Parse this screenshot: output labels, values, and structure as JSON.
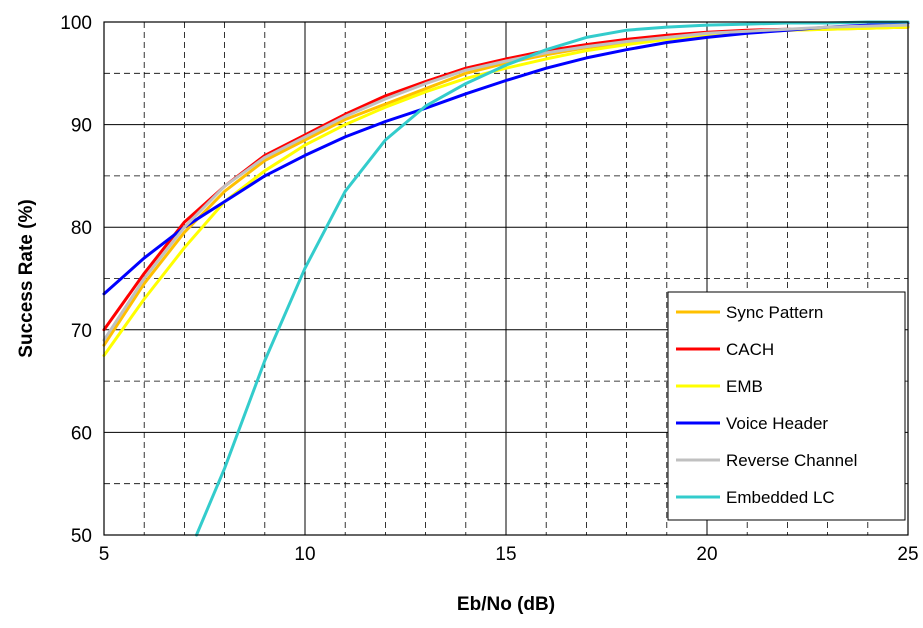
{
  "chart_data": {
    "type": "line",
    "xlabel": "Eb/No (dB)",
    "ylabel": "Success Rate (%)",
    "xlim": [
      5,
      25
    ],
    "ylim": [
      50,
      100
    ],
    "x_ticks": [
      5,
      10,
      15,
      20,
      25
    ],
    "y_ticks": [
      50,
      60,
      70,
      80,
      90,
      100
    ],
    "grid": "major solid, minor dashed",
    "legend_position": "bottom-right",
    "series": [
      {
        "name": "Sync Pattern",
        "color": "#FFC000",
        "x": [
          5,
          6,
          7,
          8,
          9,
          10,
          11,
          12,
          13,
          14,
          15,
          16,
          17,
          18,
          19,
          20,
          21,
          22,
          23,
          24,
          25
        ],
        "y": [
          68.5,
          74.5,
          79.5,
          83.5,
          86.5,
          88.5,
          90.5,
          92.0,
          93.5,
          95.0,
          96.0,
          96.8,
          97.5,
          98.0,
          98.5,
          98.8,
          99.0,
          99.2,
          99.3,
          99.4,
          99.5
        ]
      },
      {
        "name": "CACH",
        "color": "#FF0000",
        "x": [
          5,
          6,
          7,
          8,
          9,
          10,
          11,
          12,
          13,
          14,
          15,
          16,
          17,
          18,
          19,
          20,
          21,
          22,
          23,
          24,
          25
        ],
        "y": [
          70.0,
          75.5,
          80.5,
          84.0,
          87.0,
          89.0,
          91.0,
          92.8,
          94.2,
          95.5,
          96.4,
          97.2,
          97.8,
          98.3,
          98.7,
          99.0,
          99.2,
          99.3,
          99.4,
          99.5,
          99.5
        ]
      },
      {
        "name": "EMB",
        "color": "#FFFF00",
        "x": [
          5,
          6,
          7,
          8,
          9,
          10,
          11,
          12,
          13,
          14,
          15,
          16,
          17,
          18,
          19,
          20,
          21,
          22,
          23,
          24,
          25
        ],
        "y": [
          67.5,
          73.0,
          78.0,
          82.5,
          85.5,
          88.0,
          90.0,
          91.7,
          93.2,
          94.5,
          95.5,
          96.4,
          97.2,
          97.8,
          98.3,
          98.7,
          99.0,
          99.2,
          99.3,
          99.4,
          99.5
        ]
      },
      {
        "name": "Voice Header",
        "color": "#0000FF",
        "x": [
          5,
          6,
          7,
          8,
          9,
          10,
          11,
          12,
          13,
          14,
          15,
          16,
          17,
          18,
          19,
          20,
          21,
          22,
          23,
          24,
          25
        ],
        "y": [
          73.5,
          77.0,
          80.0,
          82.5,
          85.0,
          87.0,
          88.8,
          90.3,
          91.6,
          93.0,
          94.3,
          95.5,
          96.5,
          97.3,
          98.0,
          98.5,
          98.9,
          99.2,
          99.5,
          99.7,
          99.9
        ]
      },
      {
        "name": "Reverse Channel",
        "color": "#C0C0C0",
        "x": [
          5,
          6,
          7,
          8,
          9,
          10,
          11,
          12,
          13,
          14,
          15,
          16,
          17,
          18,
          19,
          20,
          21,
          22,
          23,
          24,
          25
        ],
        "y": [
          69.0,
          75.0,
          80.0,
          84.0,
          86.8,
          88.8,
          90.8,
          92.5,
          94.0,
          95.3,
          96.2,
          97.0,
          97.6,
          98.1,
          98.5,
          98.9,
          99.1,
          99.3,
          99.5,
          99.6,
          99.7
        ]
      },
      {
        "name": "Embedded LC",
        "color": "#33CCCC",
        "x": [
          7.3,
          8,
          9,
          10,
          11,
          12,
          13,
          14,
          15,
          16,
          17,
          18,
          19,
          20,
          21,
          22,
          23,
          24,
          25
        ],
        "y": [
          50.0,
          56.5,
          67.0,
          76.0,
          83.5,
          88.5,
          91.8,
          94.0,
          95.8,
          97.3,
          98.5,
          99.2,
          99.5,
          99.7,
          99.8,
          99.9,
          99.9,
          100.0,
          100.0
        ]
      }
    ]
  }
}
